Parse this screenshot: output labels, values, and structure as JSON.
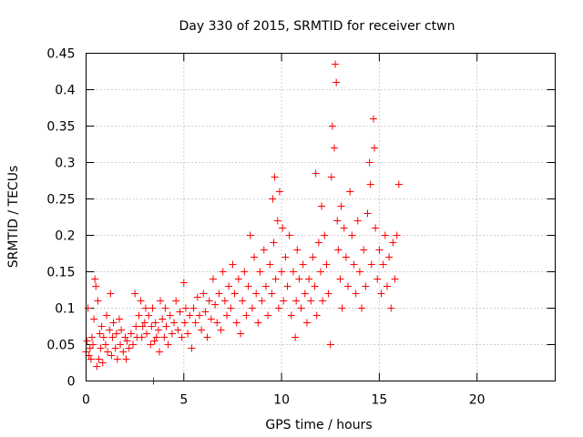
{
  "chart_data": {
    "type": "scatter",
    "title": "Day 330 of 2015, SRMTID for receiver ctwn",
    "xlabel": "GPS time / hours",
    "ylabel": "SRMTID / TECUs",
    "xlim": [
      0,
      24
    ],
    "ylim": [
      0,
      0.45
    ],
    "x_ticks": [
      0,
      5,
      10,
      15,
      20
    ],
    "x_tick_labels": [
      "0",
      "5",
      "10",
      "15",
      "20"
    ],
    "y_ticks": [
      0,
      0.05,
      0.1,
      0.15,
      0.2,
      0.25,
      0.3,
      0.35,
      0.4,
      0.45
    ],
    "y_tick_labels": [
      "0",
      "0.05",
      "0.1",
      "0.15",
      "0.2",
      "0.25",
      "0.3",
      "0.35",
      "0.4",
      "0.45"
    ],
    "grid": true,
    "marker": "+",
    "series": [
      {
        "name": "SRMTID",
        "color": "#ff0000",
        "points": [
          [
            0.0,
            0.04
          ],
          [
            0.05,
            0.055
          ],
          [
            0.1,
            0.1
          ],
          [
            0.15,
            0.035
          ],
          [
            0.2,
            0.045
          ],
          [
            0.25,
            0.03
          ],
          [
            0.3,
            0.06
          ],
          [
            0.35,
            0.05
          ],
          [
            0.4,
            0.085
          ],
          [
            0.45,
            0.14
          ],
          [
            0.5,
            0.13
          ],
          [
            0.55,
            0.02
          ],
          [
            0.6,
            0.11
          ],
          [
            0.65,
            0.03
          ],
          [
            0.7,
            0.065
          ],
          [
            0.75,
            0.045
          ],
          [
            0.8,
            0.075
          ],
          [
            0.85,
            0.025
          ],
          [
            0.9,
            0.06
          ],
          [
            1.0,
            0.05
          ],
          [
            1.05,
            0.09
          ],
          [
            1.1,
            0.04
          ],
          [
            1.2,
            0.07
          ],
          [
            1.25,
            0.12
          ],
          [
            1.3,
            0.035
          ],
          [
            1.35,
            0.06
          ],
          [
            1.4,
            0.08
          ],
          [
            1.5,
            0.045
          ],
          [
            1.55,
            0.065
          ],
          [
            1.6,
            0.03
          ],
          [
            1.7,
            0.085
          ],
          [
            1.75,
            0.05
          ],
          [
            1.8,
            0.07
          ],
          [
            1.9,
            0.04
          ],
          [
            2.0,
            0.06
          ],
          [
            2.05,
            0.03
          ],
          [
            2.1,
            0.055
          ],
          [
            2.2,
            0.045
          ],
          [
            2.3,
            0.065
          ],
          [
            2.4,
            0.05
          ],
          [
            2.5,
            0.12
          ],
          [
            2.55,
            0.075
          ],
          [
            2.6,
            0.06
          ],
          [
            2.7,
            0.09
          ],
          [
            2.8,
            0.11
          ],
          [
            2.85,
            0.06
          ],
          [
            2.9,
            0.075
          ],
          [
            3.0,
            0.08
          ],
          [
            3.05,
            0.1
          ],
          [
            3.1,
            0.065
          ],
          [
            3.2,
            0.09
          ],
          [
            3.3,
            0.05
          ],
          [
            3.35,
            0.075
          ],
          [
            3.4,
            0.1
          ],
          [
            3.45,
            0.0
          ],
          [
            3.5,
            0.055
          ],
          [
            3.55,
            0.08
          ],
          [
            3.6,
            0.06
          ],
          [
            3.7,
            0.07
          ],
          [
            3.75,
            0.04
          ],
          [
            3.8,
            0.11
          ],
          [
            3.9,
            0.085
          ],
          [
            4.0,
            0.06
          ],
          [
            4.05,
            0.1
          ],
          [
            4.1,
            0.075
          ],
          [
            4.2,
            0.05
          ],
          [
            4.3,
            0.09
          ],
          [
            4.4,
            0.065
          ],
          [
            4.5,
            0.08
          ],
          [
            4.6,
            0.11
          ],
          [
            4.7,
            0.07
          ],
          [
            4.8,
            0.095
          ],
          [
            4.9,
            0.06
          ],
          [
            5.0,
            0.135
          ],
          [
            5.05,
            0.08
          ],
          [
            5.1,
            0.1
          ],
          [
            5.2,
            0.065
          ],
          [
            5.3,
            0.09
          ],
          [
            5.4,
            0.045
          ],
          [
            5.5,
            0.1
          ],
          [
            5.6,
            0.08
          ],
          [
            5.7,
            0.115
          ],
          [
            5.8,
            0.09
          ],
          [
            5.9,
            0.07
          ],
          [
            6.0,
            0.12
          ],
          [
            6.1,
            0.095
          ],
          [
            6.2,
            0.06
          ],
          [
            6.3,
            0.11
          ],
          [
            6.4,
            0.085
          ],
          [
            6.5,
            0.14
          ],
          [
            6.6,
            0.105
          ],
          [
            6.7,
            0.08
          ],
          [
            6.8,
            0.12
          ],
          [
            6.9,
            0.07
          ],
          [
            7.0,
            0.15
          ],
          [
            7.1,
            0.11
          ],
          [
            7.2,
            0.09
          ],
          [
            7.3,
            0.13
          ],
          [
            7.4,
            0.1
          ],
          [
            7.5,
            0.16
          ],
          [
            7.6,
            0.12
          ],
          [
            7.7,
            0.08
          ],
          [
            7.8,
            0.14
          ],
          [
            7.9,
            0.065
          ],
          [
            8.0,
            0.11
          ],
          [
            8.1,
            0.15
          ],
          [
            8.2,
            0.09
          ],
          [
            8.3,
            0.13
          ],
          [
            8.4,
            0.2
          ],
          [
            8.5,
            0.1
          ],
          [
            8.6,
            0.17
          ],
          [
            8.7,
            0.12
          ],
          [
            8.8,
            0.08
          ],
          [
            8.9,
            0.15
          ],
          [
            9.0,
            0.11
          ],
          [
            9.1,
            0.18
          ],
          [
            9.2,
            0.13
          ],
          [
            9.3,
            0.09
          ],
          [
            9.4,
            0.16
          ],
          [
            9.5,
            0.12
          ],
          [
            9.55,
            0.25
          ],
          [
            9.6,
            0.19
          ],
          [
            9.65,
            0.28
          ],
          [
            9.7,
            0.14
          ],
          [
            9.8,
            0.22
          ],
          [
            9.85,
            0.1
          ],
          [
            9.9,
            0.26
          ],
          [
            10.0,
            0.15
          ],
          [
            10.05,
            0.21
          ],
          [
            10.1,
            0.11
          ],
          [
            10.2,
            0.17
          ],
          [
            10.3,
            0.13
          ],
          [
            10.4,
            0.2
          ],
          [
            10.5,
            0.09
          ],
          [
            10.6,
            0.15
          ],
          [
            10.7,
            0.06
          ],
          [
            10.75,
            0.11
          ],
          [
            10.8,
            0.18
          ],
          [
            10.9,
            0.14
          ],
          [
            11.0,
            0.1
          ],
          [
            11.1,
            0.16
          ],
          [
            11.2,
            0.12
          ],
          [
            11.3,
            0.08
          ],
          [
            11.4,
            0.14
          ],
          [
            11.5,
            0.11
          ],
          [
            11.6,
            0.17
          ],
          [
            11.7,
            0.13
          ],
          [
            11.75,
            0.285
          ],
          [
            11.8,
            0.09
          ],
          [
            11.9,
            0.19
          ],
          [
            12.0,
            0.15
          ],
          [
            12.05,
            0.24
          ],
          [
            12.1,
            0.11
          ],
          [
            12.2,
            0.2
          ],
          [
            12.3,
            0.16
          ],
          [
            12.4,
            0.12
          ],
          [
            12.5,
            0.05
          ],
          [
            12.55,
            0.28
          ],
          [
            12.6,
            0.35
          ],
          [
            12.7,
            0.32
          ],
          [
            12.75,
            0.435
          ],
          [
            12.8,
            0.41
          ],
          [
            12.85,
            0.22
          ],
          [
            12.9,
            0.18
          ],
          [
            13.0,
            0.14
          ],
          [
            13.05,
            0.24
          ],
          [
            13.1,
            0.1
          ],
          [
            13.2,
            0.21
          ],
          [
            13.3,
            0.17
          ],
          [
            13.4,
            0.13
          ],
          [
            13.5,
            0.26
          ],
          [
            13.6,
            0.2
          ],
          [
            13.7,
            0.16
          ],
          [
            13.8,
            0.12
          ],
          [
            13.9,
            0.22
          ],
          [
            14.0,
            0.15
          ],
          [
            14.1,
            0.1
          ],
          [
            14.2,
            0.18
          ],
          [
            14.3,
            0.13
          ],
          [
            14.4,
            0.23
          ],
          [
            14.5,
            0.3
          ],
          [
            14.55,
            0.27
          ],
          [
            14.6,
            0.16
          ],
          [
            14.7,
            0.36
          ],
          [
            14.75,
            0.32
          ],
          [
            14.8,
            0.21
          ],
          [
            14.9,
            0.14
          ],
          [
            15.0,
            0.18
          ],
          [
            15.1,
            0.12
          ],
          [
            15.2,
            0.16
          ],
          [
            15.3,
            0.2
          ],
          [
            15.4,
            0.13
          ],
          [
            15.5,
            0.17
          ],
          [
            15.6,
            0.1
          ],
          [
            15.7,
            0.19
          ],
          [
            15.8,
            0.14
          ],
          [
            15.9,
            0.2
          ],
          [
            16.0,
            0.27
          ]
        ]
      }
    ]
  }
}
